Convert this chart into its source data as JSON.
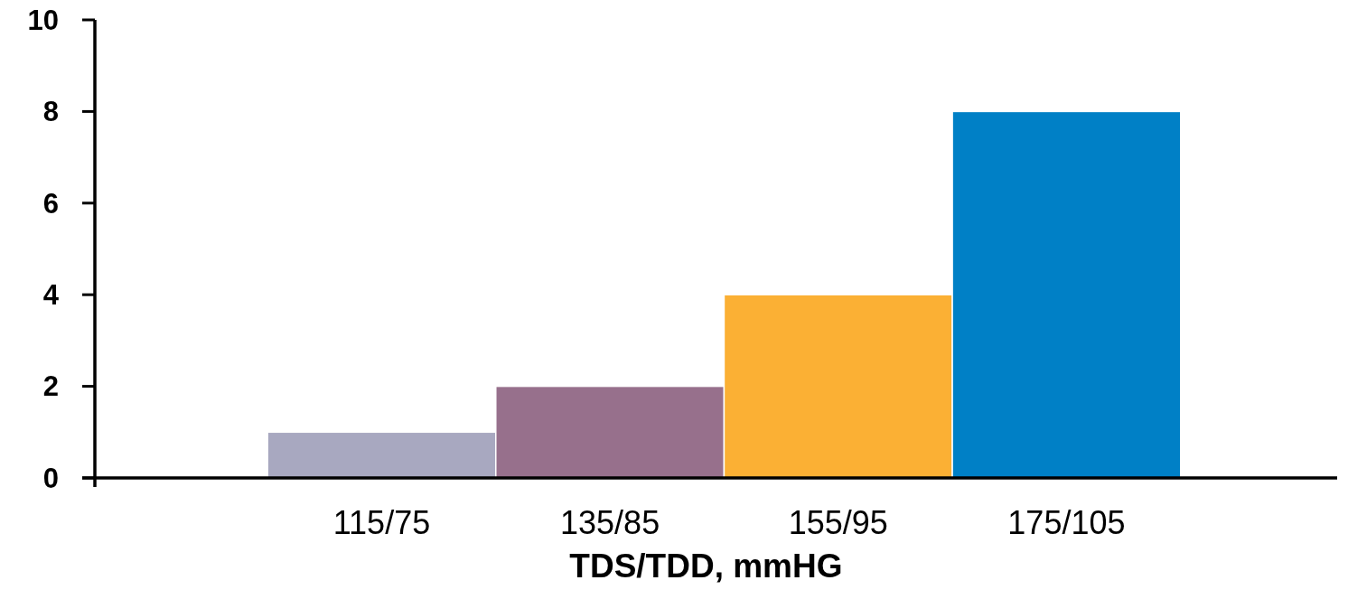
{
  "chart_data": {
    "type": "bar",
    "xlabel": "TDS/TDD, mmHG",
    "categories": [
      "115/75",
      "135/85",
      "155/95",
      "175/105"
    ],
    "values": [
      1,
      2,
      4,
      8
    ],
    "colors": [
      "#a8a8c0",
      "#97708c",
      "#fbb034",
      "#0080c6"
    ],
    "ylim": [
      0,
      10
    ],
    "yticks": [
      0,
      2,
      4,
      6,
      8,
      10
    ],
    "grid": false
  }
}
